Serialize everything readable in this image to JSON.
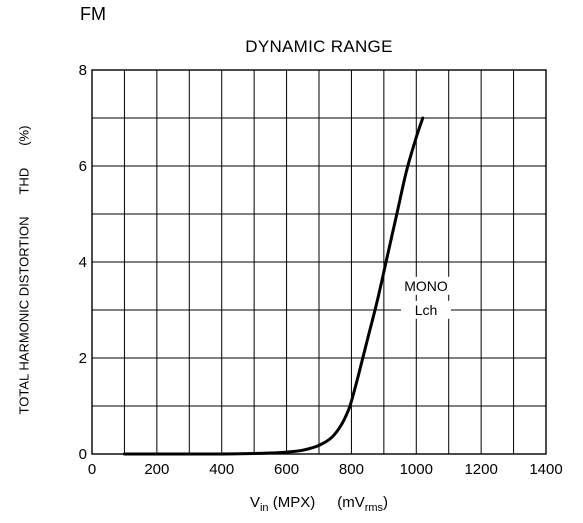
{
  "corner_label": "FM",
  "chart_data": {
    "type": "line",
    "title": "DYNAMIC RANGE",
    "xlabel": {
      "main": "V",
      "sub": "in",
      "mid": " (MPX)",
      "unit": "(mV",
      "unit_sub": "rms",
      "unit_end": ")"
    },
    "ylabel": {
      "main": "TOTAL HARMONIC DISTORTION",
      "symbol": "THD",
      "unit": "(%)"
    },
    "xlim": [
      0,
      1400
    ],
    "ylim": [
      0,
      8
    ],
    "x_ticks": [
      0,
      200,
      400,
      600,
      800,
      1000,
      1200,
      1400
    ],
    "y_ticks": [
      0,
      2,
      4,
      6,
      8
    ],
    "x_grid_step": 100,
    "y_grid_step": 1,
    "grid": true,
    "series": [
      {
        "name": "MONO Lch",
        "x": [
          100,
          200,
          300,
          400,
          500,
          550,
          600,
          650,
          700,
          740,
          770,
          790,
          800,
          820,
          850,
          880,
          910,
          940,
          970,
          1000,
          1020
        ],
        "y": [
          0.0,
          0.0,
          0.0,
          0.0,
          0.01,
          0.02,
          0.04,
          0.08,
          0.18,
          0.35,
          0.62,
          0.9,
          1.1,
          1.6,
          2.4,
          3.2,
          4.1,
          5.0,
          5.9,
          6.6,
          7.0
        ]
      }
    ],
    "annotations": [
      {
        "text": "MONO",
        "x": 1030,
        "y": 3.4
      },
      {
        "text": "Lch",
        "x": 1030,
        "y": 2.9
      }
    ]
  }
}
